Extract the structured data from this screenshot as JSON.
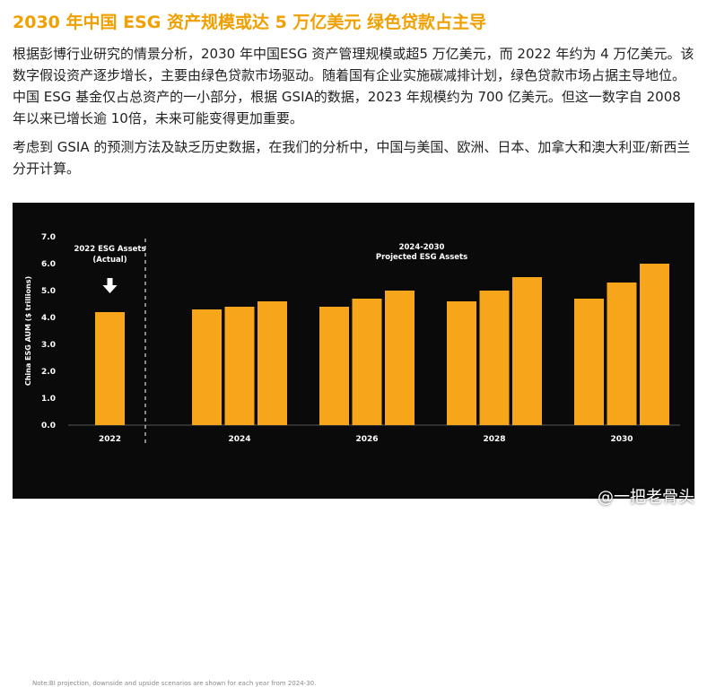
{
  "header": {
    "title": "2030 年中国 ESG 资产规模或达 5 万亿美元 绿色贷款占主导"
  },
  "body": {
    "paragraph_1": "根据彭博行业研究的情景分析，2030 年中国ESG 资产管理规模或超5 万亿美元，而 2022 年约为 4 万亿美元。该数字假设资产逐步增长，主要由绿色贷款市场驱动。随着国有企业实施碳减排计划，绿色贷款市场占据主导地位。中国 ESG 基金仅占总资产的一小部分，根据 GSIA的数据，2023 年规模约为 700 亿美元。但这一数字自 2008 年以来已增长逾 10倍，未来可能变得更加重要。",
    "paragraph_2": "考虑到 GSIA 的预测方法及缺乏历史数据，在我们的分析中，中国与美国、欧洲、日本、加拿大和澳大利亚/新西兰分开计算。"
  },
  "chart_data": {
    "type": "bar",
    "ylabel": "China ESG AUM ($ trillions)",
    "ylim": [
      0,
      7
    ],
    "yticks": [
      "7.0",
      "6.0",
      "5.0",
      "4.0",
      "3.0",
      "2.0",
      "1.0",
      "0.0"
    ],
    "actual": {
      "label_line1": "2022 ESG Assets",
      "label_line2": "(Actual)",
      "category": "2022",
      "value": 4.2
    },
    "projected": {
      "label_line1": "2024-2030",
      "label_line2": "Projected ESG Assets",
      "groups": [
        {
          "category": "2024",
          "values": [
            4.3,
            4.4,
            4.6
          ]
        },
        {
          "category": "2026",
          "values": [
            4.4,
            4.7,
            5.0
          ]
        },
        {
          "category": "2028",
          "values": [
            4.6,
            5.0,
            5.5
          ]
        },
        {
          "category": "2030",
          "values": [
            4.7,
            5.3,
            6.0
          ]
        }
      ]
    },
    "colors": {
      "bar": "#f7a51b",
      "background": "#0a0a0a",
      "text": "#ffffff"
    },
    "footnote": "Note:BI projection, downside and upside scenarios are shown for each year from 2024-30."
  },
  "watermark": "@一把老骨头"
}
